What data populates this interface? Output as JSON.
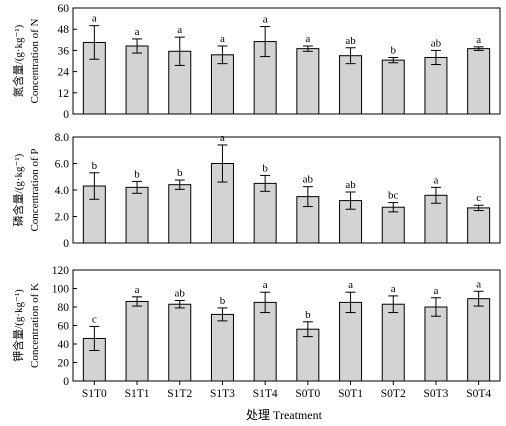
{
  "chart_data": [
    {
      "type": "bar",
      "panel": "nitrogen",
      "categories": [
        "S1T0",
        "S1T1",
        "S1T2",
        "S1T3",
        "S1T4",
        "S0T0",
        "S0T1",
        "S0T2",
        "S0T3",
        "S0T4"
      ],
      "values": [
        40.5,
        38.5,
        35.5,
        33.5,
        41.0,
        37.0,
        33.0,
        30.5,
        32.0,
        37.0
      ],
      "errors": [
        9.5,
        4.0,
        8.0,
        5.0,
        8.5,
        1.5,
        4.5,
        1.5,
        4.0,
        1.0
      ],
      "significance": [
        "a",
        "a",
        "a",
        "a",
        "a",
        "a",
        "ab",
        "b",
        "ab",
        "a"
      ],
      "yticks": [
        "0",
        "12",
        "24",
        "36",
        "48",
        "60"
      ],
      "ylim": [
        0,
        60
      ],
      "ylabel_cn": "氮含量/(g·kg⁻¹)",
      "ylabel_en": "Concentration of N",
      "bar_color": "#d3d3d3"
    },
    {
      "type": "bar",
      "panel": "phosphorus",
      "categories": [
        "S1T0",
        "S1T1",
        "S1T2",
        "S1T3",
        "S1T4",
        "S0T0",
        "S0T1",
        "S0T2",
        "S0T3",
        "S0T4"
      ],
      "values": [
        4.3,
        4.2,
        4.4,
        6.0,
        4.5,
        3.5,
        3.2,
        2.7,
        3.6,
        2.65
      ],
      "errors": [
        1.0,
        0.45,
        0.35,
        1.4,
        0.6,
        0.75,
        0.65,
        0.35,
        0.6,
        0.2
      ],
      "significance": [
        "b",
        "b",
        "b",
        "a",
        "b",
        "ab",
        "ab",
        "bc",
        "a",
        "c"
      ],
      "yticks": [
        "0",
        "2.0",
        "4.0",
        "6.0",
        "8.0"
      ],
      "ylim": [
        0,
        8
      ],
      "ylabel_cn": "磷含量/(g·kg⁻¹)",
      "ylabel_en": "Concentration of P",
      "bar_color": "#d3d3d3"
    },
    {
      "type": "bar",
      "panel": "potassium",
      "categories": [
        "S1T0",
        "S1T1",
        "S1T2",
        "S1T3",
        "S1T4",
        "S0T0",
        "S0T1",
        "S0T2",
        "S0T3",
        "S0T4"
      ],
      "values": [
        46,
        86,
        83,
        72,
        85,
        56,
        85,
        83,
        80,
        89
      ],
      "errors": [
        13,
        5,
        4,
        7,
        11,
        8,
        11,
        9,
        10,
        8
      ],
      "significance": [
        "c",
        "a",
        "ab",
        "b",
        "a",
        "b",
        "a",
        "a",
        "a",
        "a"
      ],
      "yticks": [
        "0",
        "20",
        "40",
        "60",
        "80",
        "100",
        "120"
      ],
      "ylim": [
        0,
        120
      ],
      "ylabel_cn": "钾含量/(g·kg⁻¹)",
      "ylabel_en": "Concentration of K",
      "bar_color": "#d3d3d3"
    }
  ],
  "xaxis_title": "处理 Treatment"
}
